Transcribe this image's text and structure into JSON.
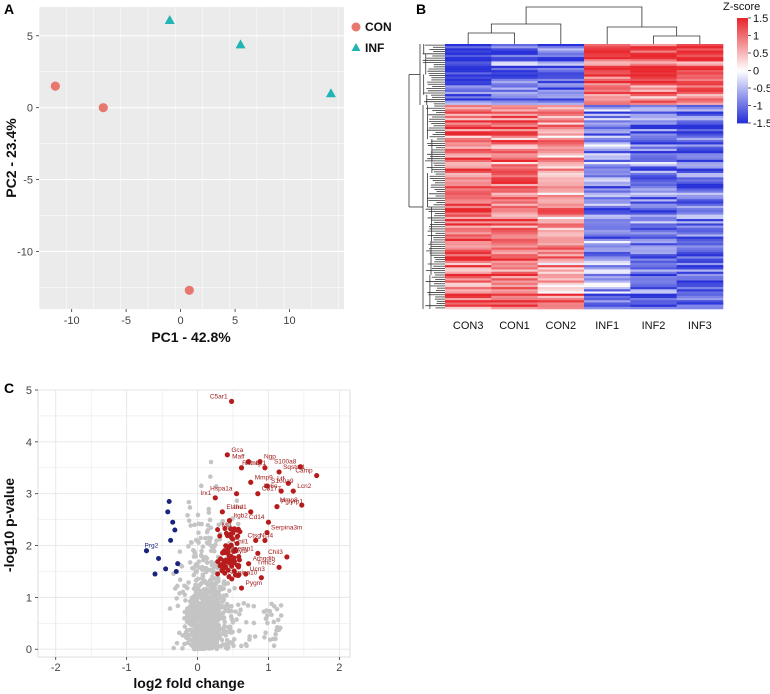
{
  "colors": {
    "con": "#e8776d",
    "inf": "#1fb5b5",
    "panel_bg": "#ebebeb",
    "heat_high": "#e8282e",
    "heat_low": "#2832d8",
    "up": "#b71c1c",
    "down": "#1a237e",
    "ns": "#c4c4c4"
  },
  "panels": {
    "a": "A",
    "b": "B",
    "c": "C"
  },
  "chart_data": [
    {
      "id": "pca",
      "type": "scatter",
      "xlabel": "PC1 - 42.8%",
      "ylabel": "PC2 - 23.4%",
      "xlim": [
        -13,
        15
      ],
      "ylim": [
        -14,
        7
      ],
      "xticks": [
        -10,
        -5,
        0,
        5,
        10
      ],
      "yticks": [
        -10,
        -5,
        0,
        5
      ],
      "legend": [
        "CON",
        "INF"
      ],
      "legend_position": "right",
      "series": [
        {
          "name": "CON",
          "marker": "circle",
          "points": [
            [
              -11.5,
              1.5
            ],
            [
              -7.1,
              0.0
            ],
            [
              0.8,
              -12.7
            ]
          ]
        },
        {
          "name": "INF",
          "marker": "triangle",
          "points": [
            [
              -1.0,
              6.1
            ],
            [
              5.5,
              4.4
            ],
            [
              13.8,
              1.0
            ]
          ]
        }
      ]
    },
    {
      "id": "heatmap",
      "type": "heatmap",
      "columns": [
        "CON3",
        "CON1",
        "CON2",
        "INF1",
        "INF2",
        "INF3"
      ],
      "colorbar_title": "Z-score",
      "colorbar_ticks": [
        "1.5",
        "1",
        "0.5",
        "0",
        "-0.5",
        "-1",
        "-1.5"
      ],
      "colorbar_values": [
        1.5,
        1,
        0.5,
        0,
        -0.5,
        -1,
        -1.5
      ],
      "clusters": [
        {
          "fraction": 0.23,
          "means": [
            -1.2,
            -1.0,
            -1.05,
            1.0,
            1.05,
            1.15
          ]
        },
        {
          "fraction": 0.77,
          "means": [
            1.0,
            0.95,
            0.7,
            -0.8,
            -1.0,
            -1.1
          ]
        }
      ]
    },
    {
      "id": "volcano",
      "type": "scatter",
      "xlabel": "log2 fold change",
      "ylabel": "-log10 p-value",
      "xlim": [
        -2.25,
        2.15
      ],
      "ylim": [
        -0.15,
        5
      ],
      "xticks": [
        -2,
        -1,
        0,
        1,
        2
      ],
      "yticks": [
        0,
        1,
        2,
        3,
        4,
        5
      ],
      "labeled_up": [
        {
          "gene": "C5ar1",
          "x": 0.48,
          "y": 4.78
        },
        {
          "gene": "Gca",
          "x": 0.42,
          "y": 3.75
        },
        {
          "gene": "Maff",
          "x": 0.72,
          "y": 3.62
        },
        {
          "gene": "Ngp",
          "x": 0.88,
          "y": 3.62
        },
        {
          "gene": "S100a8",
          "x": 1.45,
          "y": 3.52
        },
        {
          "gene": "Hmox1",
          "x": 0.62,
          "y": 3.5
        },
        {
          "gene": "Retnlg",
          "x": 0.95,
          "y": 3.5
        },
        {
          "gene": "Sqstm1",
          "x": 1.15,
          "y": 3.42
        },
        {
          "gene": "Camp",
          "x": 1.68,
          "y": 3.35
        },
        {
          "gene": "Mmp9",
          "x": 0.75,
          "y": 3.22
        },
        {
          "gene": "Ltf",
          "x": 1.28,
          "y": 3.2
        },
        {
          "gene": "S100a9",
          "x": 0.98,
          "y": 3.15
        },
        {
          "gene": "Ly6c",
          "x": 1.18,
          "y": 3.05
        },
        {
          "gene": "Lcn2",
          "x": 1.35,
          "y": 3.05
        },
        {
          "gene": "Hspa1a",
          "x": 0.55,
          "y": 3.0
        },
        {
          "gene": "Cd177",
          "x": 0.85,
          "y": 3.0
        },
        {
          "gene": "Irx1",
          "x": 0.25,
          "y": 2.92
        },
        {
          "gene": "Pglyrp1",
          "x": 1.12,
          "y": 2.75
        },
        {
          "gene": "Mmp8",
          "x": 1.47,
          "y": 2.78
        },
        {
          "gene": "Elane",
          "x": 0.35,
          "y": 2.65
        },
        {
          "gene": "Ifrd1",
          "x": 0.75,
          "y": 2.65
        },
        {
          "gene": "Itgb2",
          "x": 0.45,
          "y": 2.48
        },
        {
          "gene": "Cd14",
          "x": 1.0,
          "y": 2.45
        },
        {
          "gene": "Serpina3m",
          "x": 0.98,
          "y": 2.25
        },
        {
          "gene": "Mt1",
          "x": 0.55,
          "y": 2.3
        },
        {
          "gene": "Ncf4",
          "x": 0.82,
          "y": 2.1
        },
        {
          "gene": "Ctsg",
          "x": 0.95,
          "y": 2.1
        },
        {
          "gene": "Chil1",
          "x": 0.45,
          "y": 1.98
        },
        {
          "gene": "Mcemp1",
          "x": 0.85,
          "y": 1.85
        },
        {
          "gene": "Myl9",
          "x": 0.45,
          "y": 1.8
        },
        {
          "gene": "Chil3",
          "x": 1.26,
          "y": 1.78
        },
        {
          "gene": "Arhgdib",
          "x": 0.72,
          "y": 1.65
        },
        {
          "gene": "Tnnc2",
          "x": 1.15,
          "y": 1.58
        },
        {
          "gene": "Ucn3",
          "x": 0.68,
          "y": 1.45
        },
        {
          "gene": "Serpina10",
          "x": 0.9,
          "y": 1.38
        },
        {
          "gene": "Pygm",
          "x": 0.62,
          "y": 1.18
        }
      ],
      "labeled_down": [
        {
          "gene": "Prg2",
          "x": -0.72,
          "y": 1.9
        }
      ]
    }
  ]
}
